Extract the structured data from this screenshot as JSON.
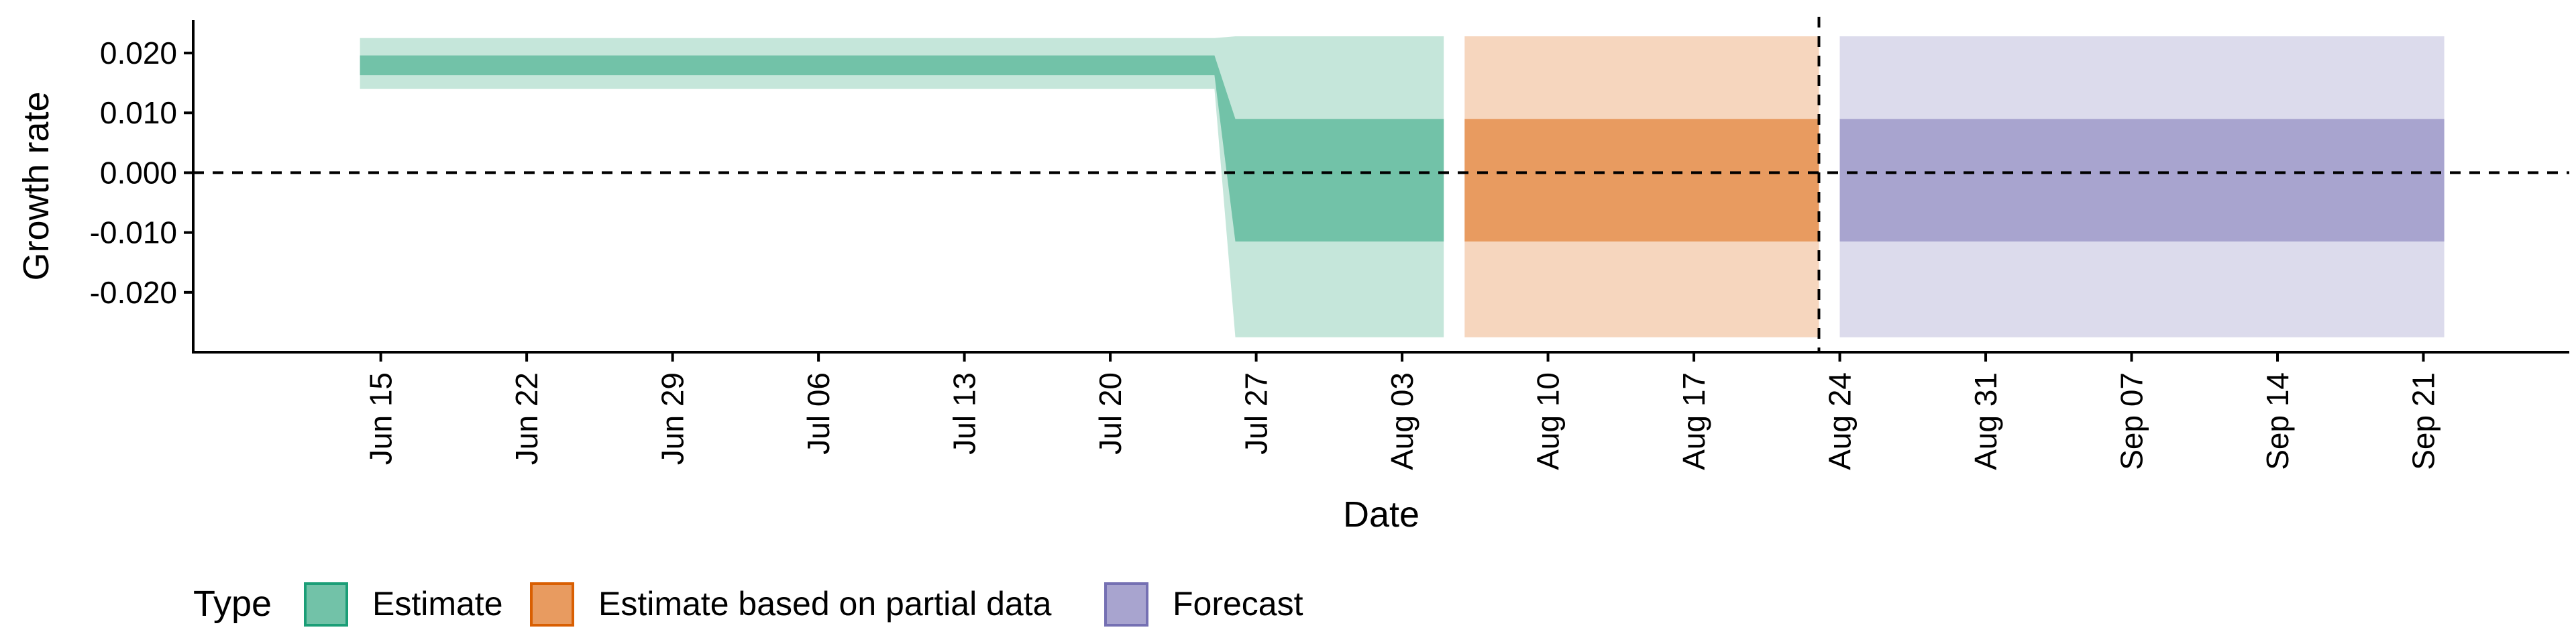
{
  "chart_data": {
    "type": "area",
    "title": "",
    "xlabel": "Date",
    "ylabel": "Growth rate",
    "xlim": [
      "2020-06-06",
      "2020-09-28"
    ],
    "ylim": [
      -0.03,
      0.0255
    ],
    "x_ticks": [
      "2020-06-15",
      "2020-06-22",
      "2020-06-29",
      "2020-07-06",
      "2020-07-13",
      "2020-07-20",
      "2020-07-27",
      "2020-08-03",
      "2020-08-10",
      "2020-08-17",
      "2020-08-24",
      "2020-08-31",
      "2020-09-07",
      "2020-09-14",
      "2020-09-21"
    ],
    "x_tick_labels": [
      "Jun 15",
      "Jun 22",
      "Jun 29",
      "Jul 06",
      "Jul 13",
      "Jul 20",
      "Jul 27",
      "Aug 03",
      "Aug 10",
      "Aug 17",
      "Aug 24",
      "Aug 31",
      "Sep 07",
      "Sep 14",
      "Sep 21"
    ],
    "y_ticks": [
      0.02,
      0.01,
      0.0,
      -0.01,
      -0.02
    ],
    "y_tick_labels": [
      "0.020",
      "0.010",
      "0.000",
      "-0.010",
      "-0.020"
    ],
    "hline": 0,
    "vline": "2020-08-23",
    "grid": false,
    "legend": {
      "title": "Type",
      "position": "bottom-left",
      "entries": [
        {
          "label": "Estimate",
          "fill": "#72c2a8",
          "stroke": "#1b9e77"
        },
        {
          "label": "Estimate based on partial data",
          "fill": "#e89b60",
          "stroke": "#d95f02"
        },
        {
          "label": "Forecast",
          "fill": "#a8a4cf",
          "stroke": "#7570b3"
        }
      ]
    },
    "series": [
      {
        "name": "Estimate",
        "inner_color": "#72c2a8",
        "outer_color": "#c5e6da",
        "points": [
          {
            "x": "2020-06-14",
            "outer_low": 0.014,
            "outer_high": 0.0225,
            "inner_low": 0.0163,
            "inner_high": 0.0196
          },
          {
            "x": "2020-07-25",
            "outer_low": 0.014,
            "outer_high": 0.0225,
            "inner_low": 0.0163,
            "inner_high": 0.0196
          },
          {
            "x": "2020-07-26",
            "outer_low": -0.0275,
            "outer_high": 0.0228,
            "inner_low": -0.0115,
            "inner_high": 0.009
          },
          {
            "x": "2020-08-05",
            "outer_low": -0.0275,
            "outer_high": 0.0228,
            "inner_low": -0.0115,
            "inner_high": 0.009
          }
        ]
      },
      {
        "name": "Estimate based on partial data",
        "inner_color": "#e89b60",
        "outer_color": "#f6d6be",
        "points": [
          {
            "x": "2020-08-06",
            "outer_low": -0.0275,
            "outer_high": 0.0228,
            "inner_low": -0.0115,
            "inner_high": 0.009
          },
          {
            "x": "2020-08-23",
            "outer_low": -0.0275,
            "outer_high": 0.0228,
            "inner_low": -0.0115,
            "inner_high": 0.009
          }
        ]
      },
      {
        "name": "Forecast",
        "inner_color": "#a8a4cf",
        "outer_color": "#dcdbec",
        "points": [
          {
            "x": "2020-08-24",
            "outer_low": -0.0275,
            "outer_high": 0.0228,
            "inner_low": -0.0115,
            "inner_high": 0.009
          },
          {
            "x": "2020-09-22",
            "outer_low": -0.0275,
            "outer_high": 0.0228,
            "inner_low": -0.0115,
            "inner_high": 0.009
          }
        ]
      }
    ]
  }
}
